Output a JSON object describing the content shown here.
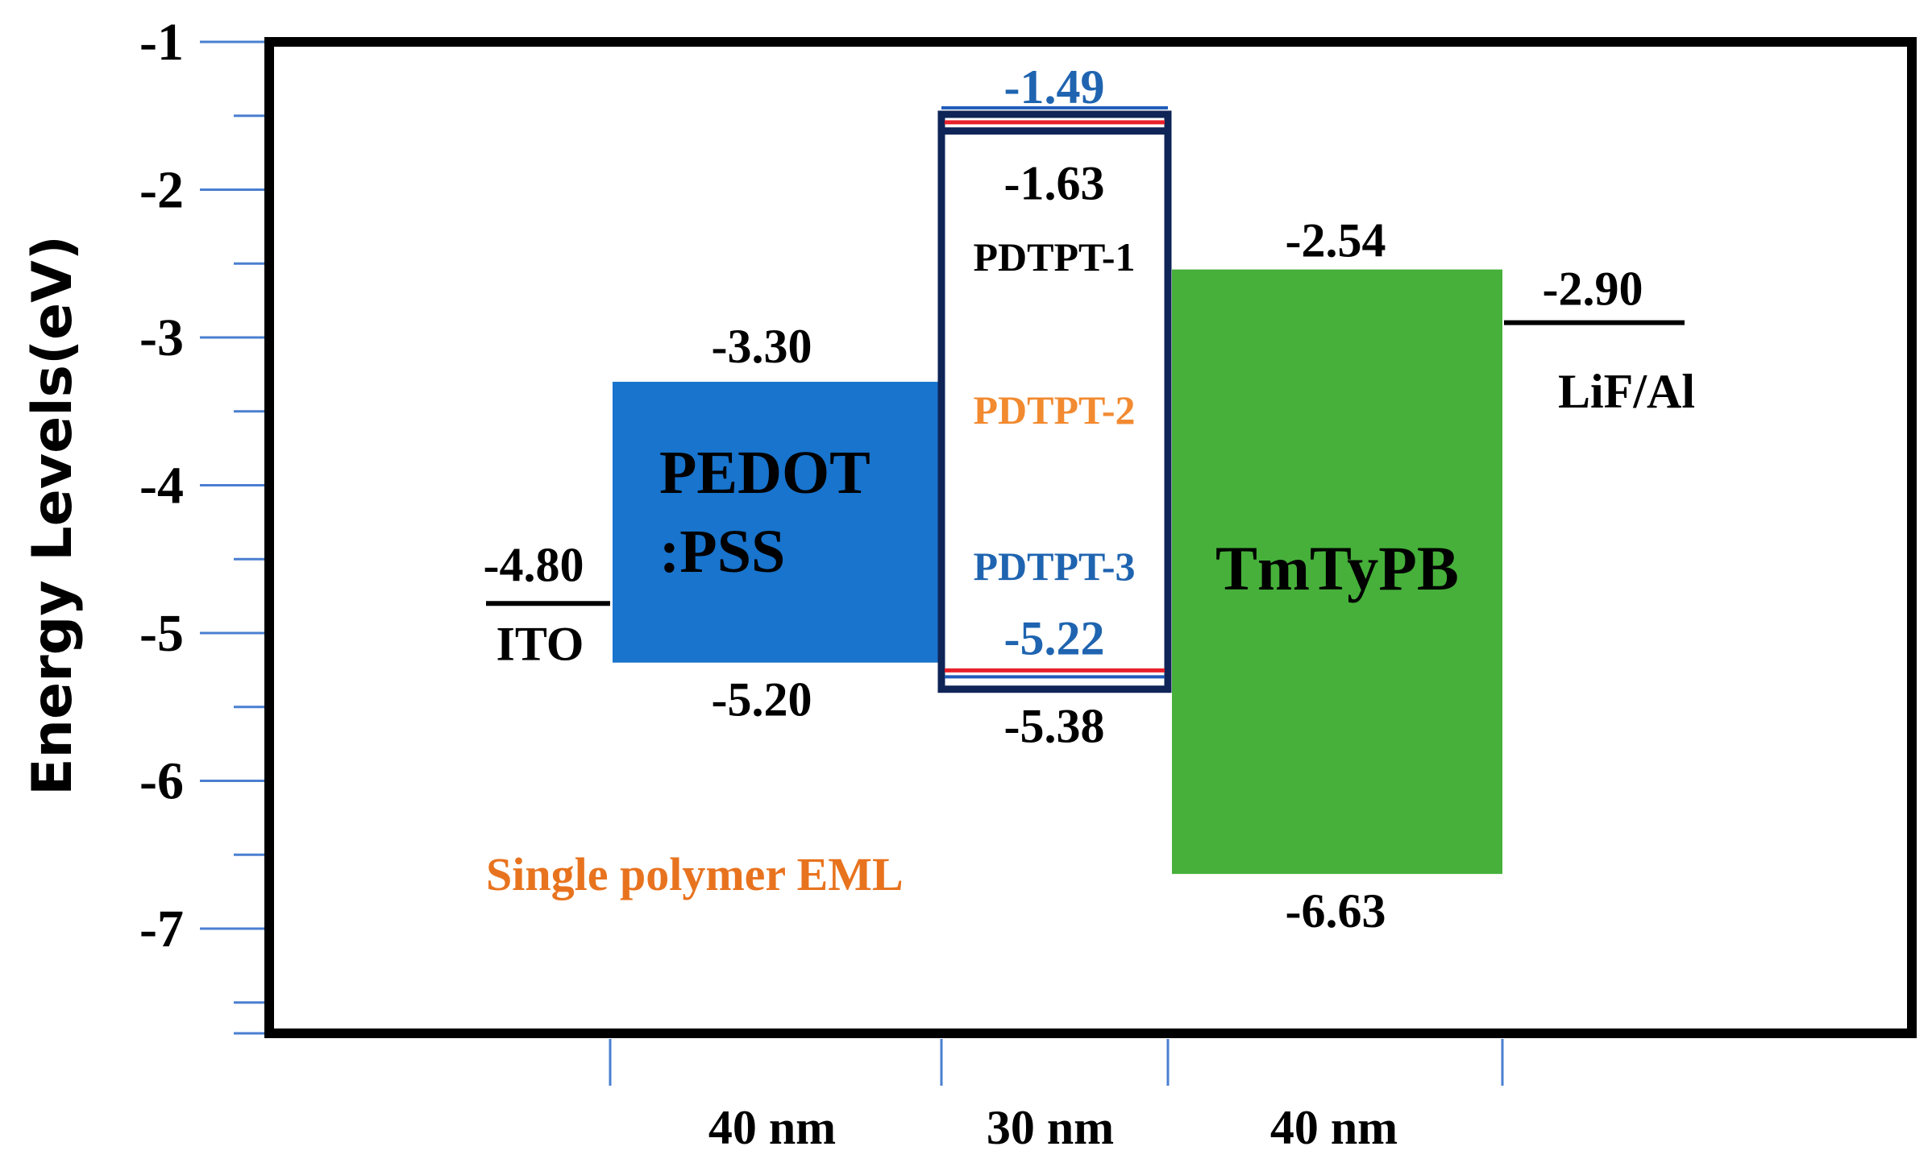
{
  "y_axis": {
    "label": "Energy Levels(eV)",
    "ticks": [
      "-1",
      "-2",
      "-3",
      "-4",
      "-5",
      "-6",
      "-7"
    ],
    "min": -7.7,
    "max": -1
  },
  "colors": {
    "pedot": "#1874cd",
    "tmtypb": "#46b03a",
    "frame": "#000000",
    "tick_line": "#4a7fd0",
    "eml_border": "#0f2457",
    "red_line": "#e8202a",
    "blue_line": "#1f5bb8",
    "pdtpt1": "#000000",
    "pdtpt2": "#f28a30",
    "pdtpt3": "#1f64b0",
    "blue_value": "#1f64b0",
    "eml_note": "#e8731f"
  },
  "layers": {
    "ito": {
      "name": "ITO",
      "level": "-4.80",
      "level_num": -4.8
    },
    "pedot": {
      "name_line1": "PEDOT",
      "name_line2": ":PSS",
      "lumo": "-3.30",
      "homo": "-5.20",
      "lumo_num": -3.3,
      "homo_num": -5.2
    },
    "eml": {
      "lumo_outer": "-1.49",
      "lumo_inner": "-1.63",
      "homo_inner": "-5.22",
      "homo_outer": "-5.38",
      "lumo_outer_num": -1.49,
      "lumo_inner_num": -1.63,
      "homo_inner_num": -5.22,
      "homo_outer_num": -5.38,
      "polymers": [
        "PDTPT-1",
        "PDTPT-2",
        "PDTPT-3"
      ]
    },
    "tmtypb": {
      "name": "TmTyPB",
      "lumo": "-2.54",
      "homo": "-6.63",
      "lumo_num": -2.54,
      "homo_num": -6.63
    },
    "cathode": {
      "name": "LiF/Al",
      "level": "-2.90",
      "level_num": -2.9
    }
  },
  "annotation": "Single polymer EML",
  "thickness": [
    "40 nm",
    "30 nm",
    "40 nm"
  ]
}
